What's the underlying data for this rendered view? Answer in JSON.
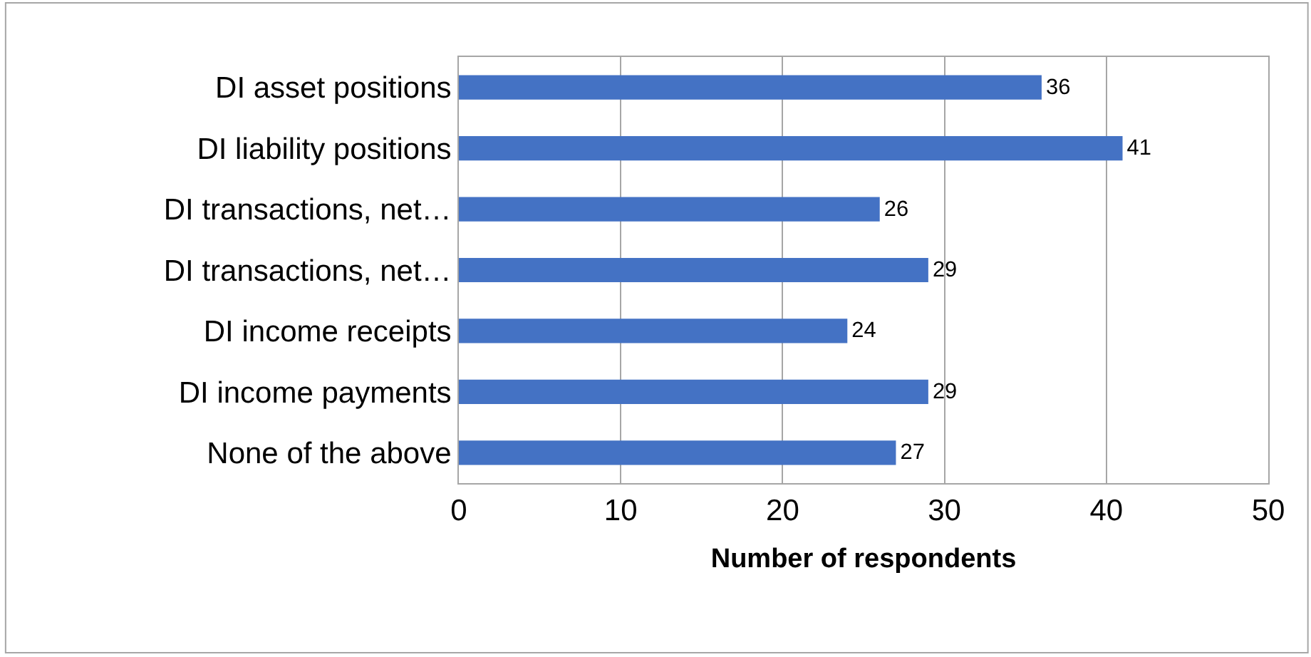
{
  "chart_data": {
    "type": "bar",
    "orientation": "horizontal",
    "xlabel": "Number of respondents",
    "categories": [
      "DI asset positions",
      "DI liability positions",
      "DI transactions, net…",
      "DI transactions, net…",
      "DI income receipts",
      "DI income payments",
      "None of the above"
    ],
    "values": [
      36,
      41,
      26,
      29,
      24,
      29,
      27
    ],
    "color": "#4472c4",
    "xlim": [
      0,
      50
    ],
    "xticks": [
      0,
      10,
      20,
      30,
      40,
      50
    ],
    "grid": "x",
    "data_labels": true,
    "legend": false
  }
}
